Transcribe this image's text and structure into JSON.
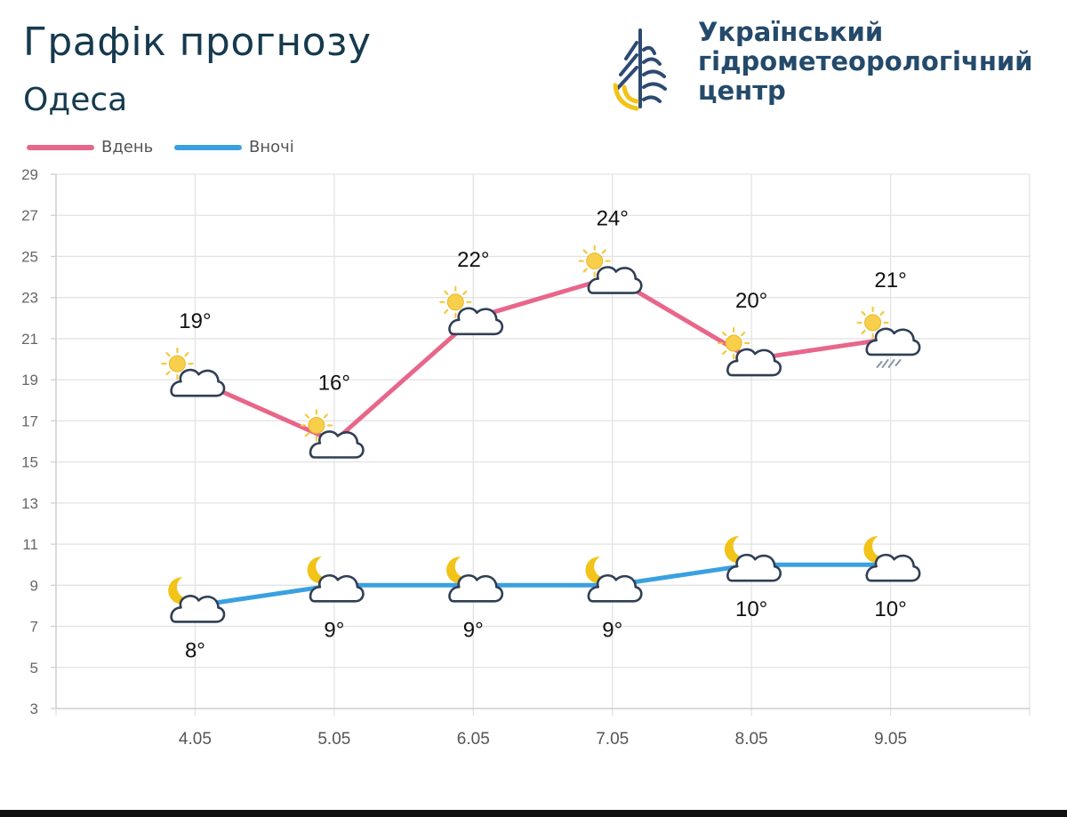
{
  "header": {
    "title": "Графік прогнозу",
    "city": "Одеса"
  },
  "org": {
    "line1": "Український",
    "line2": "гідрометеорологічний",
    "line3": "центр"
  },
  "colors": {
    "day": "#e8668a",
    "night": "#3aa0e0",
    "title": "#163a4e",
    "org": "#244a6b",
    "logo_blue": "#2d4a72",
    "logo_yellow": "#f2c318",
    "sun": "#f5c842",
    "grid": "#e3e3e3"
  },
  "chart_data": {
    "type": "line",
    "categories": [
      "4.05",
      "5.05",
      "6.05",
      "7.05",
      "8.05",
      "9.05"
    ],
    "series": [
      {
        "name": "Вдень",
        "values": [
          19,
          16,
          22,
          24,
          20,
          21
        ],
        "labels": [
          "19°",
          "16°",
          "22°",
          "24°",
          "20°",
          "21°"
        ],
        "icons": [
          "sun-cloud",
          "sun-cloud",
          "sun-cloud",
          "sun-cloud",
          "sun-cloud",
          "sun-cloud-rain"
        ]
      },
      {
        "name": "Вночі",
        "values": [
          8,
          9,
          9,
          9,
          10,
          10
        ],
        "labels": [
          "8°",
          "9°",
          "9°",
          "9°",
          "10°",
          "10°"
        ],
        "icons": [
          "moon-cloud",
          "moon-cloud",
          "moon-cloud",
          "moon-cloud",
          "moon-cloud",
          "moon-cloud"
        ]
      }
    ],
    "yticks": [
      3,
      5,
      7,
      9,
      11,
      13,
      15,
      17,
      19,
      21,
      23,
      25,
      27,
      29
    ],
    "ylim": [
      3,
      29
    ],
    "legend_position": "top-left",
    "grid": true
  }
}
